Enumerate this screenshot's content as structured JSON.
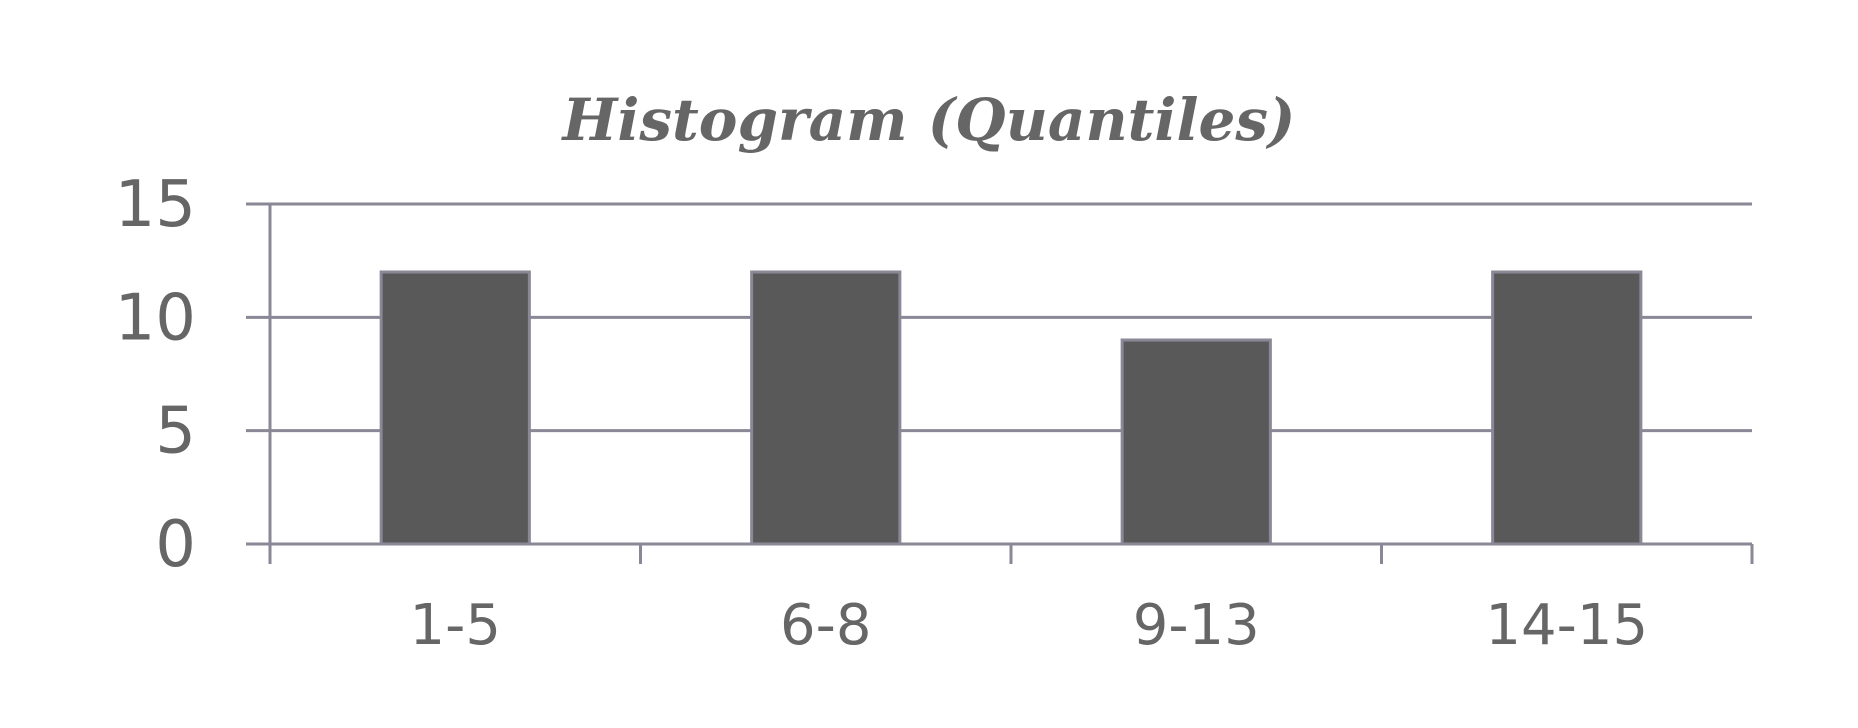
{
  "chart_data": {
    "type": "bar",
    "title": "Histogram (Quantiles)",
    "categories": [
      "1-5",
      "6-8",
      "9-13",
      "14-15"
    ],
    "values": [
      12,
      12,
      9,
      12
    ],
    "ylim": [
      0,
      15
    ],
    "yticks": [
      0,
      5,
      10,
      15
    ],
    "xlabel": "",
    "ylabel": "",
    "grid": true,
    "legend": "none",
    "colors": {
      "bar": "#595959",
      "bar_outline": "#8a8796",
      "grid": "#8a8796",
      "text": "#666666"
    }
  }
}
